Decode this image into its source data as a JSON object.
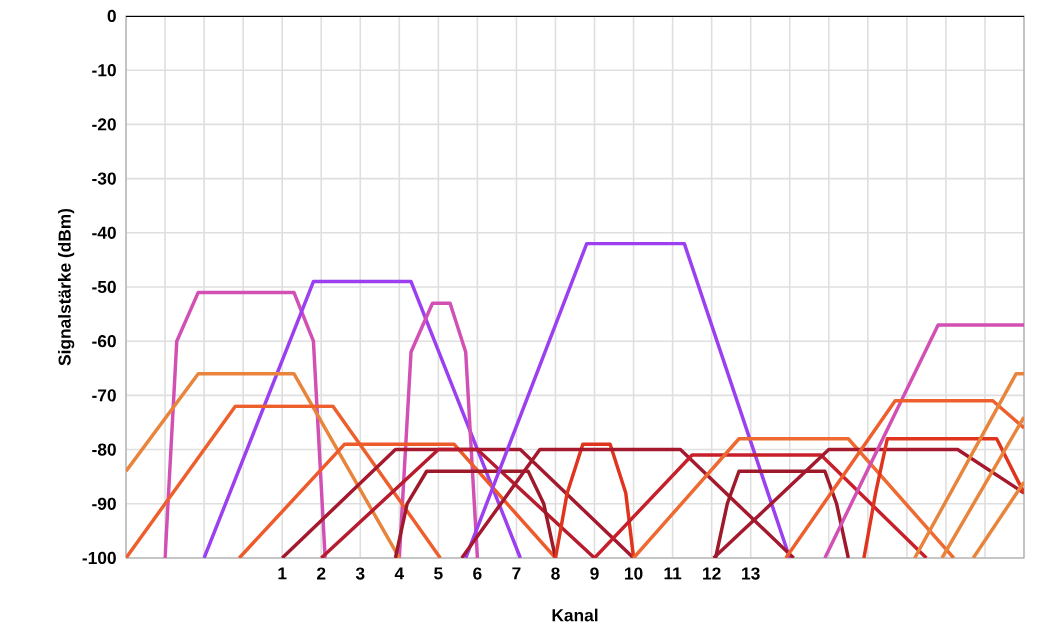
{
  "chart_data": {
    "type": "line",
    "xlabel": "Kanal",
    "ylabel": "Signalstärke (dBm)",
    "xlim": [
      -3,
      20
    ],
    "ylim": [
      -100,
      0
    ],
    "xticks": [
      {
        "value": -3,
        "label": null
      },
      {
        "value": -2,
        "label": null
      },
      {
        "value": -1,
        "label": null
      },
      {
        "value": 0,
        "label": null
      },
      1,
      2,
      3,
      4,
      5,
      6,
      7,
      8,
      9,
      10,
      11,
      12,
      13,
      {
        "value": 14,
        "label": null
      },
      {
        "value": 15,
        "label": null
      },
      {
        "value": 16,
        "label": null
      },
      {
        "value": 17,
        "label": null
      },
      {
        "value": 18,
        "label": null
      },
      {
        "value": 19,
        "label": null
      },
      {
        "value": 20,
        "label": null
      }
    ],
    "yticks": [
      0,
      -10,
      -20,
      -30,
      -40,
      -50,
      -60,
      -70,
      -80,
      -90,
      -100
    ],
    "grid": true,
    "marker": "none",
    "line_style": "solid",
    "series": [
      {
        "color": "#d24fb4",
        "x": [
          -2,
          -1.7,
          -1.15,
          1.3,
          1.8,
          2.1
        ],
        "values": [
          -100,
          -60,
          -51,
          -51,
          -60,
          -100
        ]
      },
      {
        "color": "#9b3ff0",
        "x": [
          -1,
          1.8,
          4.3,
          7.1
        ],
        "values": [
          -100,
          -49,
          -49,
          -100
        ]
      },
      {
        "color": "#d24fb4",
        "x": [
          4,
          4.3,
          4.85,
          5.3,
          5.7,
          6
        ],
        "values": [
          -100,
          -62,
          -53,
          -53,
          -62,
          -100
        ]
      },
      {
        "color": "#e8843c",
        "x": [
          -3,
          -1.15,
          1.3,
          4
        ],
        "values": [
          -84,
          -66,
          -66,
          -100
        ]
      },
      {
        "color": "#ee5f2e",
        "x": [
          -3,
          -0.2,
          2.3,
          5.05
        ],
        "values": [
          -100,
          -72,
          -72,
          -100
        ]
      },
      {
        "color": "#ee5a2a",
        "x": [
          -0.1,
          2.6,
          5.4,
          8
        ],
        "values": [
          -100,
          -79,
          -79,
          -100
        ]
      },
      {
        "color": "#a5192e",
        "x": [
          1,
          3.9,
          7.1,
          10
        ],
        "values": [
          -100,
          -80,
          -80,
          -100
        ]
      },
      {
        "color": "#b71c2e",
        "x": [
          2,
          5,
          6,
          9
        ],
        "values": [
          -100,
          -80,
          -80,
          -100
        ]
      },
      {
        "color": "#9e1a2a",
        "x": [
          3.9,
          4.2,
          4.7,
          7.3,
          7.7,
          8
        ],
        "values": [
          -100,
          -90,
          -84,
          -84,
          -90,
          -100
        ]
      },
      {
        "color": "#9b3ff0",
        "x": [
          5.7,
          8.8,
          11.3,
          14
        ],
        "values": [
          -100,
          -42,
          -42,
          -100
        ]
      },
      {
        "color": "#e0341e",
        "x": [
          8,
          8.3,
          8.7,
          9.4,
          9.8,
          10
        ],
        "values": [
          -100,
          -88,
          -79,
          -79,
          -88,
          -100
        ]
      },
      {
        "color": "#a5192e",
        "x": [
          5.6,
          7.6,
          11.2,
          14.1
        ],
        "values": [
          -100,
          -80,
          -80,
          -100
        ]
      },
      {
        "color": "#c8202a",
        "x": [
          9,
          11.5,
          14.8,
          17.5
        ],
        "values": [
          -100,
          -81,
          -81,
          -100
        ]
      },
      {
        "color": "#ee6a30",
        "x": [
          10,
          12.7,
          15.5,
          18.2
        ],
        "values": [
          -100,
          -78,
          -78,
          -100
        ]
      },
      {
        "color": "#a5192e",
        "x": [
          12.05,
          15,
          18.3,
          20
        ],
        "values": [
          -100,
          -80,
          -80,
          -88
        ]
      },
      {
        "color": "#9e1a2a",
        "x": [
          12.1,
          12.4,
          12.7,
          14.9,
          15.2,
          15.5
        ],
        "values": [
          -100,
          -90,
          -84,
          -84,
          -90,
          -100
        ]
      },
      {
        "color": "#d24fb4",
        "x": [
          14.9,
          17.8,
          20
        ],
        "values": [
          -100,
          -57,
          -57
        ]
      },
      {
        "color": "#ee5f2e",
        "x": [
          13.9,
          16.7,
          19.2,
          20
        ],
        "values": [
          -100,
          -71,
          -71,
          -76
        ]
      },
      {
        "color": "#e0341e",
        "x": [
          15.9,
          16.2,
          16.5,
          19.3,
          20
        ],
        "values": [
          -100,
          -88,
          -78,
          -78,
          -88
        ]
      },
      {
        "color": "#e8843c",
        "x": [
          17.2,
          19.8,
          20
        ],
        "values": [
          -100,
          -66,
          -66
        ]
      },
      {
        "color": "#e8843c",
        "x": [
          17.9,
          20
        ],
        "values": [
          -100,
          -74
        ]
      },
      {
        "color": "#e8843c",
        "x": [
          18.7,
          20
        ],
        "values": [
          -100,
          -86
        ]
      }
    ]
  }
}
